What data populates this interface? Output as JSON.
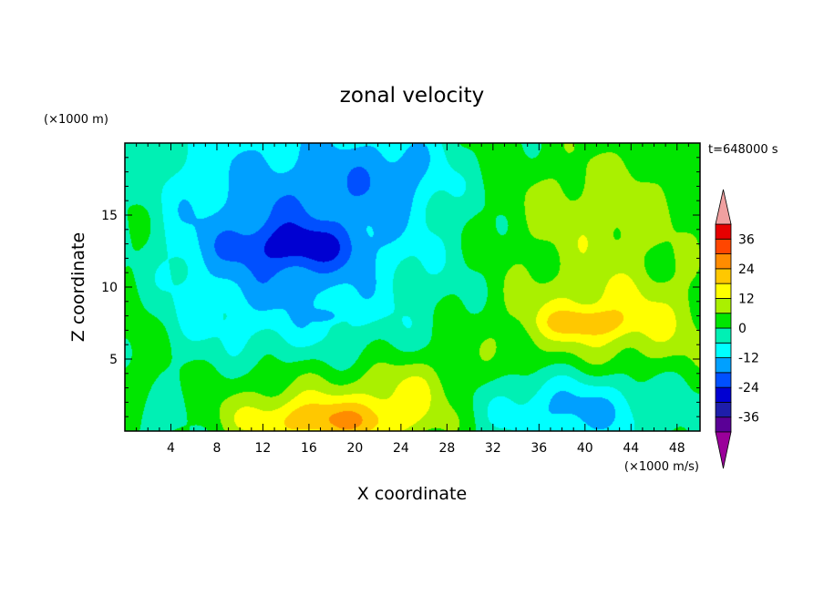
{
  "chart_data": {
    "type": "heatmap",
    "title": "zonal velocity",
    "xlabel": "X coordinate",
    "ylabel": "Z coordinate",
    "x_unit": "(×1000 m/s)",
    "y_unit": "(×1000 m)",
    "time_label": "t=648000 s",
    "xlim": [
      0,
      50
    ],
    "ylim": [
      0,
      20
    ],
    "x_ticks": [
      4,
      8,
      12,
      16,
      20,
      24,
      28,
      32,
      36,
      40,
      44,
      48
    ],
    "y_ticks": [
      5,
      10,
      15
    ],
    "colorbar": {
      "levels": [
        -42,
        -36,
        -30,
        -24,
        -18,
        -12,
        -6,
        0,
        6,
        12,
        18,
        24,
        30,
        36,
        42
      ],
      "colors": [
        "#9a009a",
        "#5a0096",
        "#1e1eaa",
        "#0000d2",
        "#0050ff",
        "#00a0ff",
        "#00ffff",
        "#00f0b4",
        "#00e600",
        "#aaf000",
        "#ffff00",
        "#ffc800",
        "#ff8c00",
        "#ff4600",
        "#e60000",
        "#f0a0a0"
      ],
      "tick_labels": [
        -36,
        -24,
        -12,
        0,
        12,
        24,
        36
      ]
    },
    "blobs": [
      {
        "x": 1,
        "y": 10,
        "rx": 2.5,
        "ry": 12,
        "v": 5
      },
      {
        "x": 14,
        "y": 14,
        "rx": 12,
        "ry": 9,
        "v": -17
      },
      {
        "x": 15,
        "y": 12.8,
        "rx": 5.5,
        "ry": 1.6,
        "v": -12
      },
      {
        "x": 17.5,
        "y": 8,
        "rx": 1,
        "ry": 0.4,
        "v": -10
      },
      {
        "x": 24,
        "y": 18,
        "rx": 5,
        "ry": 3,
        "v": -9
      },
      {
        "x": 30,
        "y": 19,
        "rx": 3,
        "ry": 2,
        "v": 2
      },
      {
        "x": 17,
        "y": 2.5,
        "rx": 12,
        "ry": 3,
        "v": 10
      },
      {
        "x": 18,
        "y": 0.6,
        "rx": 8,
        "ry": 1.6,
        "v": 19
      },
      {
        "x": 25,
        "y": 3,
        "rx": 4,
        "ry": 2,
        "v": 7
      },
      {
        "x": 2,
        "y": 1,
        "rx": 4,
        "ry": 2,
        "v": -6
      },
      {
        "x": 41,
        "y": 15,
        "rx": 9,
        "ry": 5,
        "v": 10
      },
      {
        "x": 42,
        "y": 8,
        "rx": 10,
        "ry": 3,
        "v": 12
      },
      {
        "x": 40,
        "y": 7.5,
        "rx": 3.5,
        "ry": 1,
        "v": 12
      },
      {
        "x": 39,
        "y": 1.5,
        "rx": 8,
        "ry": 2.5,
        "v": -14
      },
      {
        "x": 37,
        "y": 5.5,
        "rx": 12,
        "ry": 2,
        "v": 2
      },
      {
        "x": 47,
        "y": 5,
        "rx": 5,
        "ry": 4,
        "v": 2
      }
    ]
  }
}
